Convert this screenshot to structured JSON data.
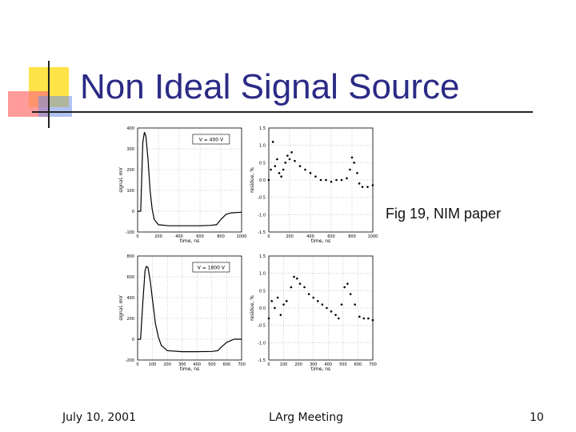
{
  "slide": {
    "title": "Non Ideal Signal Source",
    "caption": "Fig 19, NIM paper",
    "footer_left": "July 10, 2001",
    "footer_center": "LArg Meeting",
    "footer_right": "10",
    "title_color": "#2b2b86",
    "accent_colors": [
      "#ffe033",
      "#ff7a7a",
      "#6f8fe6"
    ]
  },
  "chart_data": [
    {
      "type": "line",
      "annotation": "V = 400 V",
      "xlabel": "time, ns",
      "ylabel": "signal, mV",
      "xlim": [
        0,
        1000
      ],
      "ylim": [
        -100,
        400
      ],
      "xticks": [
        0,
        200,
        400,
        600,
        800,
        1000
      ],
      "yticks": [
        -100,
        0,
        100,
        200,
        300,
        400
      ],
      "ytick_labels": [
        "-100",
        "0",
        "100",
        "200",
        "300",
        "400"
      ],
      "grid": true,
      "x": [
        0,
        30,
        50,
        65,
        80,
        100,
        120,
        140,
        160,
        200,
        300,
        400,
        500,
        600,
        700,
        760,
        800,
        850,
        900,
        1000
      ],
      "y": [
        0,
        0,
        330,
        380,
        360,
        250,
        100,
        10,
        -40,
        -65,
        -70,
        -70,
        -70,
        -70,
        -68,
        -65,
        -40,
        -15,
        -8,
        -5
      ]
    },
    {
      "type": "scatter",
      "xlabel": "time, ns",
      "ylabel": "residue, %",
      "xlim": [
        0,
        1000
      ],
      "ylim": [
        -1.5,
        1.5
      ],
      "xticks": [
        0,
        200,
        400,
        600,
        800,
        1000
      ],
      "yticks": [
        -1.5,
        -1.0,
        -0.5,
        0.0,
        0.5,
        1.0,
        1.5
      ],
      "ytick_labels": [
        "-1.5",
        "-1.0",
        "-0.5",
        "0.0",
        "0.5",
        "1.0",
        "1.5"
      ],
      "grid": true,
      "x": [
        0,
        20,
        40,
        60,
        80,
        100,
        120,
        140,
        160,
        180,
        200,
        220,
        250,
        300,
        350,
        400,
        450,
        500,
        550,
        600,
        650,
        700,
        750,
        780,
        800,
        820,
        850,
        870,
        900,
        950,
        1000
      ],
      "y": [
        0.0,
        0.3,
        1.1,
        0.4,
        0.6,
        0.2,
        0.1,
        0.3,
        0.5,
        0.7,
        0.6,
        0.8,
        0.55,
        0.4,
        0.3,
        0.2,
        0.1,
        0.0,
        0.0,
        -0.05,
        0.0,
        0.0,
        0.05,
        0.3,
        0.65,
        0.5,
        0.2,
        -0.1,
        -0.2,
        -0.2,
        -0.15
      ]
    },
    {
      "type": "line",
      "annotation": "V = 1800 V",
      "xlabel": "time, ns",
      "ylabel": "signal, mV",
      "xlim": [
        0,
        700
      ],
      "ylim": [
        -200,
        800
      ],
      "xticks": [
        0,
        100,
        200,
        300,
        400,
        500,
        600,
        700
      ],
      "yticks": [
        -200,
        0,
        200,
        400,
        600,
        800
      ],
      "ytick_labels": [
        "-200",
        "0",
        "200",
        "400",
        "600",
        "800"
      ],
      "grid": true,
      "x": [
        0,
        20,
        35,
        50,
        60,
        70,
        85,
        100,
        120,
        140,
        160,
        200,
        300,
        400,
        500,
        540,
        560,
        600,
        650,
        700
      ],
      "y": [
        0,
        0,
        350,
        660,
        700,
        690,
        560,
        380,
        150,
        20,
        -60,
        -110,
        -120,
        -120,
        -118,
        -110,
        -80,
        -30,
        0,
        0
      ]
    },
    {
      "type": "scatter",
      "xlabel": "time, ns",
      "ylabel": "residue, %",
      "xlim": [
        0,
        700
      ],
      "ylim": [
        -1.5,
        1.5
      ],
      "xticks": [
        0,
        100,
        200,
        300,
        400,
        500,
        600,
        700
      ],
      "yticks": [
        -1.5,
        -1.0,
        -0.5,
        0.0,
        0.5,
        1.0,
        1.5
      ],
      "ytick_labels": [
        "-1.5",
        "-1.0",
        "-0.5",
        "0.0",
        "0.5",
        "1.0",
        "1.5"
      ],
      "grid": true,
      "x": [
        0,
        20,
        40,
        60,
        80,
        100,
        120,
        150,
        170,
        190,
        210,
        240,
        270,
        300,
        330,
        360,
        390,
        420,
        450,
        470,
        490,
        510,
        530,
        550,
        580,
        610,
        640,
        670,
        700
      ],
      "y": [
        -0.3,
        0.2,
        0.0,
        0.3,
        -0.2,
        0.1,
        0.2,
        0.6,
        0.9,
        0.85,
        0.7,
        0.6,
        0.4,
        0.3,
        0.2,
        0.1,
        0.0,
        -0.1,
        -0.2,
        -0.3,
        0.1,
        0.6,
        0.7,
        0.4,
        0.1,
        -0.25,
        -0.3,
        -0.3,
        -0.35
      ]
    }
  ]
}
